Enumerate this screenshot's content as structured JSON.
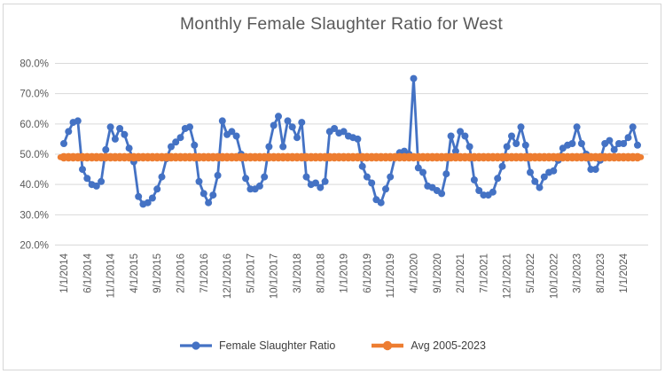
{
  "chart_data": {
    "type": "line",
    "title": "Monthly Female Slaughter Ratio for West",
    "x_unit": "month",
    "grid": true,
    "legend_position": "bottom",
    "ylim": [
      20,
      80
    ],
    "y_ticks": [
      {
        "value": 80,
        "label": "80.0%"
      },
      {
        "value": 70,
        "label": "70.0%"
      },
      {
        "value": 60,
        "label": "60.0%"
      },
      {
        "value": 50,
        "label": "50.0%"
      },
      {
        "value": 40,
        "label": "40.0%"
      },
      {
        "value": 30,
        "label": "30.0%"
      },
      {
        "value": 20,
        "label": "20.0%"
      }
    ],
    "x_ticks": [
      {
        "index": 0,
        "label": "1/1/2014"
      },
      {
        "index": 5,
        "label": "6/1/2014"
      },
      {
        "index": 10,
        "label": "11/1/2014"
      },
      {
        "index": 15,
        "label": "4/1/2015"
      },
      {
        "index": 20,
        "label": "9/1/2015"
      },
      {
        "index": 25,
        "label": "2/1/2016"
      },
      {
        "index": 30,
        "label": "7/1/2016"
      },
      {
        "index": 35,
        "label": "12/1/2016"
      },
      {
        "index": 40,
        "label": "5/1/2017"
      },
      {
        "index": 45,
        "label": "10/1/2017"
      },
      {
        "index": 50,
        "label": "3/1/2018"
      },
      {
        "index": 55,
        "label": "8/1/2018"
      },
      {
        "index": 60,
        "label": "1/1/2019"
      },
      {
        "index": 65,
        "label": "6/1/2019"
      },
      {
        "index": 70,
        "label": "11/1/2019"
      },
      {
        "index": 75,
        "label": "4/1/2020"
      },
      {
        "index": 80,
        "label": "9/1/2020"
      },
      {
        "index": 85,
        "label": "2/1/2021"
      },
      {
        "index": 90,
        "label": "7/1/2021"
      },
      {
        "index": 95,
        "label": "12/1/2021"
      },
      {
        "index": 100,
        "label": "5/1/2022"
      },
      {
        "index": 105,
        "label": "10/1/2022"
      },
      {
        "index": 110,
        "label": "3/1/2023"
      },
      {
        "index": 115,
        "label": "8/1/2023"
      },
      {
        "index": 120,
        "label": "1/1/2024"
      }
    ],
    "series": [
      {
        "name": "Female Slaughter Ratio",
        "color": "#4472C4",
        "style": "line-with-markers",
        "x_start_label": "1/1/2014",
        "values": [
          53.5,
          57.5,
          60.5,
          61,
          45,
          42,
          40,
          39.5,
          41,
          51.5,
          59,
          55,
          58.5,
          56.5,
          52,
          47.5,
          36,
          33.5,
          34,
          35.5,
          38.5,
          42.5,
          48.5,
          52.5,
          54,
          55.5,
          58.5,
          59,
          53,
          41,
          37,
          34,
          36.5,
          43,
          61,
          56.5,
          57.5,
          56,
          50,
          42,
          38.5,
          38.5,
          39.5,
          42.5,
          52.5,
          59.5,
          62.5,
          52.5,
          61,
          59,
          55.5,
          60.5,
          42.5,
          40,
          40.5,
          39,
          41,
          57.5,
          58.5,
          57,
          57.5,
          56,
          55.5,
          55,
          46,
          42.5,
          40.5,
          35,
          34,
          38.5,
          42.5,
          49,
          50.5,
          51,
          50,
          75,
          45.5,
          44,
          39.5,
          39,
          38,
          37,
          43.5,
          56,
          51,
          57.5,
          56,
          52.5,
          41.5,
          38,
          36.5,
          36.5,
          37.5,
          42,
          46,
          52.5,
          56,
          53.5,
          59,
          53,
          44,
          41,
          39,
          42.5,
          44,
          44.5,
          48,
          52,
          53,
          53.5,
          59,
          53.5,
          50,
          45,
          45,
          48,
          53.5,
          54.5,
          51.5,
          53.5,
          53.5,
          55.5,
          59,
          53
        ]
      },
      {
        "name": "Avg 2005-2023",
        "color": "#ED7D31",
        "style": "thick-line-with-markers",
        "constant_value": 49
      }
    ],
    "colors": {
      "gridline": "#D9D9D9",
      "axis_text": "#595959",
      "title_text": "#595959",
      "legend_text": "#3f3f3f",
      "chart_border": "#D6D6D6"
    }
  }
}
